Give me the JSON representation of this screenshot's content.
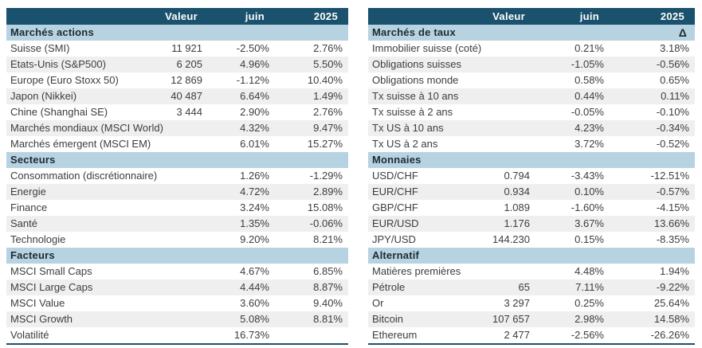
{
  "colors": {
    "header_bg": "#1a516d",
    "section_bg": "#b7d3e2",
    "stripe_bg": "#efefef",
    "text": "#3d3d3d"
  },
  "tables": [
    {
      "name": "marches-actions-secteurs-facteurs",
      "columns": [
        "",
        "Valeur",
        "juin",
        "2025"
      ],
      "sections": [
        {
          "title": "Marchés actions",
          "delta": "",
          "rows": [
            {
              "label": "Suisse (SMI)",
              "valeur": "11 921",
              "juin": "-2.50%",
              "ytd": "2.76%"
            },
            {
              "label": "Etats-Unis (S&P500)",
              "valeur": "6 205",
              "juin": "4.96%",
              "ytd": "5.50%"
            },
            {
              "label": "Europe (Euro Stoxx 50)",
              "valeur": "12 869",
              "juin": "-1.12%",
              "ytd": "10.40%"
            },
            {
              "label": "Japon (Nikkei)",
              "valeur": "40 487",
              "juin": "6.64%",
              "ytd": "1.49%"
            },
            {
              "label": "Chine (Shanghai SE)",
              "valeur": "3 444",
              "juin": "2.90%",
              "ytd": "2.76%"
            },
            {
              "label": "Marchés mondiaux (MSCI World)",
              "valeur": "",
              "juin": "4.32%",
              "ytd": "9.47%"
            },
            {
              "label": "Marchés émergent (MSCI EM)",
              "valeur": "",
              "juin": "6.01%",
              "ytd": "15.27%"
            }
          ]
        },
        {
          "title": "Secteurs",
          "delta": "",
          "rows": [
            {
              "label": "Consommation (discrétionnaire)",
              "valeur": "",
              "juin": "1.26%",
              "ytd": "-1.29%"
            },
            {
              "label": "Energie",
              "valeur": "",
              "juin": "4.72%",
              "ytd": "2.89%"
            },
            {
              "label": "Finance",
              "valeur": "",
              "juin": "3.24%",
              "ytd": "15.08%"
            },
            {
              "label": "Santé",
              "valeur": "",
              "juin": "1.35%",
              "ytd": "-0.06%"
            },
            {
              "label": "Technologie",
              "valeur": "",
              "juin": "9.20%",
              "ytd": "8.21%"
            }
          ]
        },
        {
          "title": "Facteurs",
          "delta": "",
          "rows": [
            {
              "label": "MSCI Small Caps",
              "valeur": "",
              "juin": "4.67%",
              "ytd": "6.85%"
            },
            {
              "label": "MSCI Large Caps",
              "valeur": "",
              "juin": "4.44%",
              "ytd": "8.87%"
            },
            {
              "label": "MSCI Value",
              "valeur": "",
              "juin": "3.60%",
              "ytd": "9.40%"
            },
            {
              "label": "MSCI Growth",
              "valeur": "",
              "juin": "5.08%",
              "ytd": "8.81%"
            },
            {
              "label": "Volatilité",
              "valeur": "",
              "juin": "16.73%",
              "ytd": ""
            }
          ]
        }
      ]
    },
    {
      "name": "marches-taux-monnaies-alternatif",
      "columns": [
        "",
        "Valeur",
        "juin",
        "2025"
      ],
      "sections": [
        {
          "title": "Marchés de taux",
          "delta": "Δ",
          "rows": [
            {
              "label": "Immobilier suisse (coté)",
              "valeur": "",
              "juin": "0.21%",
              "ytd": "3.18%"
            },
            {
              "label": "Obligations suisses",
              "valeur": "",
              "juin": "-1.05%",
              "ytd": "-0.56%"
            },
            {
              "label": "Obligations monde",
              "valeur": "",
              "juin": "0.58%",
              "ytd": "0.65%"
            },
            {
              "label": "Tx suisse à 10 ans",
              "valeur": "",
              "juin": "0.44%",
              "ytd": "0.11%"
            },
            {
              "label": "Tx suisse à 2 ans",
              "valeur": "",
              "juin": "-0.05%",
              "ytd": "-0.10%"
            },
            {
              "label": "Tx US à 10 ans",
              "valeur": "",
              "juin": "4.23%",
              "ytd": "-0.34%"
            },
            {
              "label": "Tx US à 2 ans",
              "valeur": "",
              "juin": "3.72%",
              "ytd": "-0.52%"
            }
          ]
        },
        {
          "title": "Monnaies",
          "delta": "",
          "rows": [
            {
              "label": "USD/CHF",
              "valeur": "0.794",
              "juin": "-3.43%",
              "ytd": "-12.51%"
            },
            {
              "label": "EUR/CHF",
              "valeur": "0.934",
              "juin": "0.10%",
              "ytd": "-0.57%"
            },
            {
              "label": "GBP/CHF",
              "valeur": "1.089",
              "juin": "-1.60%",
              "ytd": "-4.15%"
            },
            {
              "label": "EUR/USD",
              "valeur": "1.176",
              "juin": "3.67%",
              "ytd": "13.66%"
            },
            {
              "label": "JPY/USD",
              "valeur": "144.230",
              "juin": "0.15%",
              "ytd": "-8.35%"
            }
          ]
        },
        {
          "title": "Alternatif",
          "delta": "",
          "rows": [
            {
              "label": "Matières premières",
              "valeur": "",
              "juin": "4.48%",
              "ytd": "1.94%"
            },
            {
              "label": "Pétrole",
              "valeur": "65",
              "juin": "7.11%",
              "ytd": "-9.22%"
            },
            {
              "label": "Or",
              "valeur": "3 297",
              "juin": "0.25%",
              "ytd": "25.64%"
            },
            {
              "label": "Bitcoin",
              "valeur": "107 657",
              "juin": "2.98%",
              "ytd": "14.58%"
            },
            {
              "label": "Ethereum",
              "valeur": "2 477",
              "juin": "-2.56%",
              "ytd": "-26.26%"
            }
          ]
        }
      ]
    }
  ]
}
